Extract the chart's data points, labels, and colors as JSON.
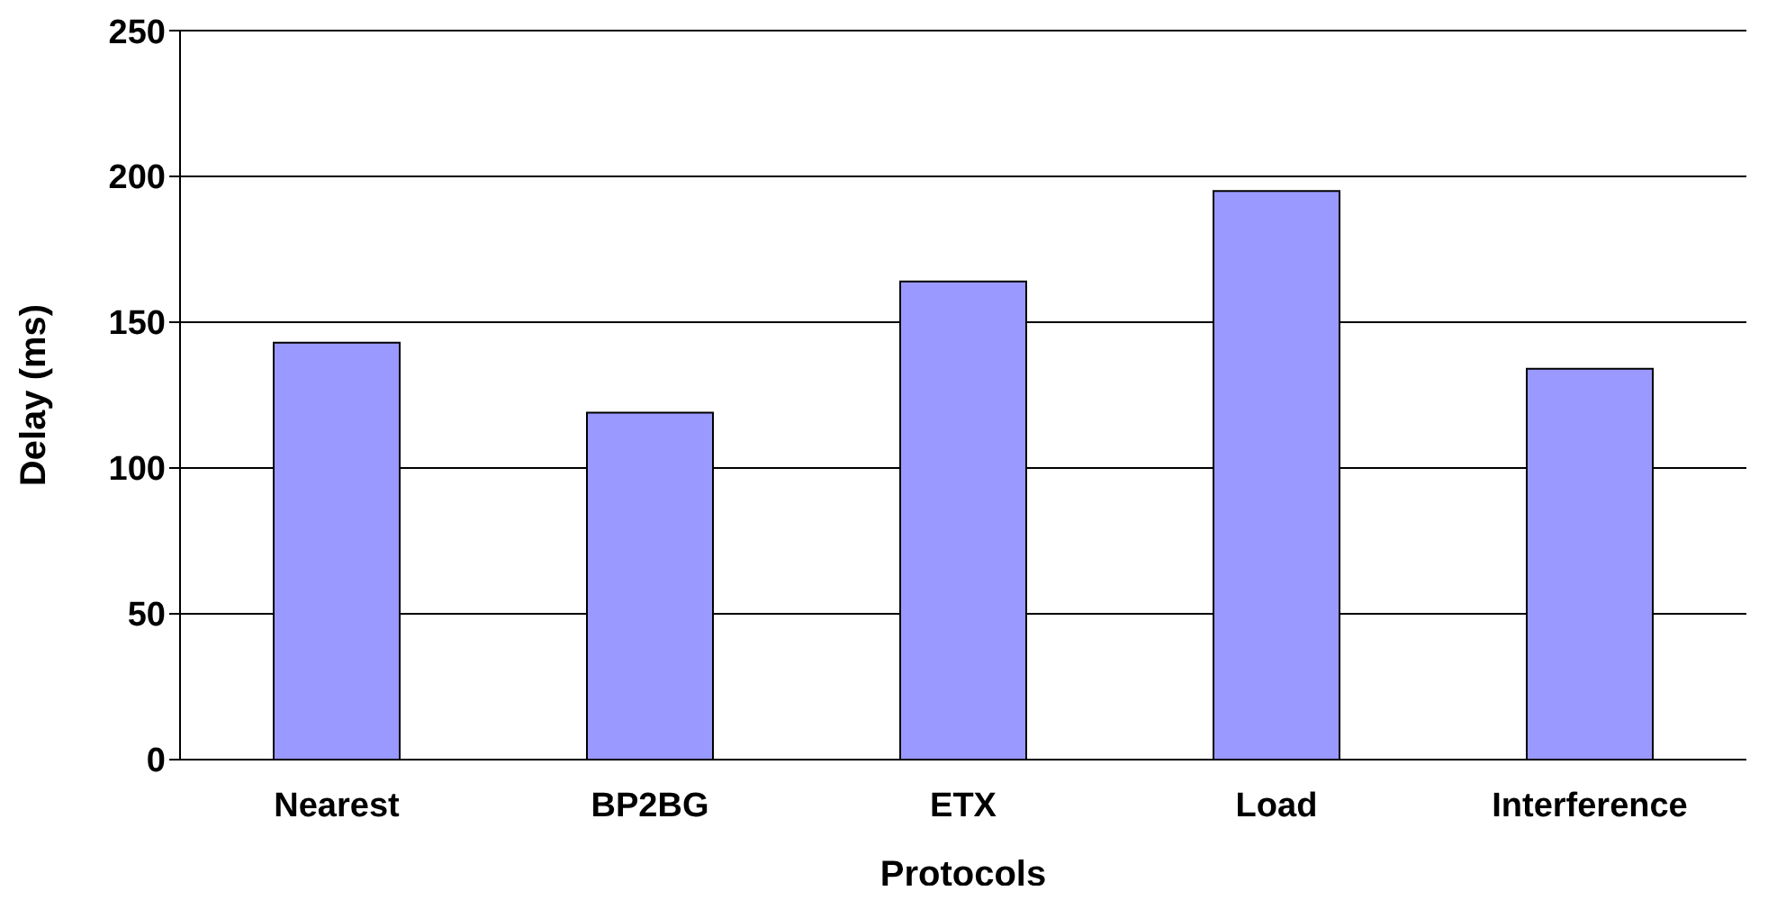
{
  "chart_data": {
    "type": "bar",
    "xlabel": "Protocols",
    "ylabel": "Delay (ms)",
    "categories": [
      "Nearest",
      "BP2BG",
      "ETX",
      "Load",
      "Interference"
    ],
    "values": [
      143,
      119,
      164,
      195,
      134
    ],
    "color": "#9999ff",
    "ylim": [
      0,
      250
    ],
    "yticks": [
      0,
      50,
      100,
      150,
      200,
      250
    ],
    "grid": "y",
    "legend": false
  }
}
